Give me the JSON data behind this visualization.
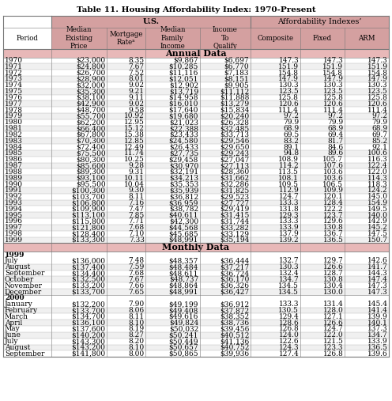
{
  "title": "Table 11. Housing Affordability Index: 1970-Present",
  "col_headers_row1": [
    "Period",
    "U.S.",
    "Affordability Indexes’"
  ],
  "col_headers_row2": [
    "Period",
    "Median\nExisting\nPrice",
    "Mortgage\nRateᵃ",
    "Median\nFamily\nIncome",
    "Income\nTo\nQualify",
    "Composite",
    "Fixed",
    "ARM"
  ],
  "annual_data": [
    [
      "1970",
      "$23,000",
      "8.35",
      "$9,867",
      "$6,697",
      "147.3",
      "147.3",
      "147.3"
    ],
    [
      "1971",
      "$24,800",
      "7.67",
      "$10,285",
      "$6,770",
      "151.9",
      "151.9",
      "151.9"
    ],
    [
      "1972",
      "$26,700",
      "7.52",
      "$11,116",
      "$7,183",
      "154.8",
      "154.8",
      "154.8"
    ],
    [
      "1973",
      "$28,900",
      "8.01",
      "$12,051",
      "$8,151",
      "147.9",
      "147.9",
      "147.9"
    ],
    [
      "1974",
      "$32,000",
      "9.02",
      "$12,902",
      "$9,905",
      "130.3",
      "130.3",
      "130.3"
    ],
    [
      "1975",
      "$35,300",
      "9.21",
      "$13,719",
      "$11,112",
      "123.5",
      "123.5",
      "123.5"
    ],
    [
      "1976",
      "$38,100",
      "9.11",
      "$14,958",
      "$11,888",
      "125.8",
      "125.8",
      "125.8"
    ],
    [
      "1977",
      "$42,900",
      "9.02",
      "$16,010",
      "$13,279",
      "120.6",
      "120.6",
      "120.6"
    ],
    [
      "1978",
      "$48,700",
      "9.58",
      "$17,640",
      "$15,834",
      "111.4",
      "111.4",
      "111.4"
    ],
    [
      "1979",
      "$55,700",
      "10.92",
      "$19,680",
      "$20,240",
      "97.2",
      "97.2",
      "97.2"
    ],
    [
      "1980",
      "$62,200",
      "12.95",
      "$21,023",
      "$26,328",
      "79.9",
      "79.9",
      "79.9"
    ],
    [
      "1981",
      "$66,400",
      "15.12",
      "$22,388",
      "$32,485",
      "68.9",
      "68.9",
      "68.9"
    ],
    [
      "1982",
      "$67,800",
      "15.38",
      "$23,433",
      "$33,713",
      "69.5",
      "69.4",
      "69.7"
    ],
    [
      "1983",
      "$70,300",
      "12.85",
      "$24,580",
      "$29,546",
      "83.2",
      "81.7",
      "85.2"
    ],
    [
      "1984",
      "$72,400",
      "12.49",
      "$26,433",
      "$29,650",
      "89.1",
      "84.6",
      "92.1"
    ],
    [
      "1985",
      "$75,500",
      "11.74",
      "$27,735",
      "$29,243",
      "94.8",
      "89.6",
      "100.6"
    ],
    [
      "1986",
      "$80,300",
      "10.25",
      "$29,458",
      "$27,047",
      "108.9",
      "105.7",
      "116.3"
    ],
    [
      "1987",
      "$85,600",
      "9.28",
      "$30,970",
      "$27,113",
      "114.2",
      "107.6",
      "122.4"
    ],
    [
      "1988",
      "$89,300",
      "9.31",
      "$32,191",
      "$28,360",
      "113.5",
      "103.6",
      "122.0"
    ],
    [
      "1989",
      "$93,100",
      "10.11",
      "$34,213",
      "$31,662",
      "108.1",
      "103.6",
      "114.3"
    ],
    [
      "1990",
      "$95,500",
      "10.04",
      "$35,353",
      "$32,286",
      "109.5",
      "106.5",
      "118.3"
    ],
    [
      "1991",
      "$100,300",
      "9.30",
      "$35,939",
      "$31,825",
      "112.9",
      "109.9",
      "124.2"
    ],
    [
      "1992",
      "$103,700",
      "8.11",
      "$36,812",
      "$29,523",
      "124.7",
      "120.1",
      "145.0"
    ],
    [
      "1993",
      "$106,800",
      "7.16",
      "$36,959",
      "$27,727",
      "133.3",
      "128.4",
      "154.9"
    ],
    [
      "1994",
      "$109,900",
      "7.47",
      "$38,782",
      "$29,419",
      "131.8",
      "122.2",
      "149.5"
    ],
    [
      "1995",
      "$113,100",
      "7.85",
      "$40,611",
      "$31,415",
      "129.3",
      "123.7",
      "140.0"
    ],
    [
      "1996",
      "$115,800",
      "7.71",
      "$42,300",
      "$31,744",
      "133.3",
      "129.6",
      "142.9"
    ],
    [
      "1997",
      "$121,800",
      "7.68",
      "$44,568",
      "$33,282",
      "133.9",
      "130.8",
      "145.2"
    ],
    [
      "1998",
      "$128,400",
      "7.10",
      "$45,685",
      "$33,129",
      "137.9",
      "136.7",
      "147.5"
    ],
    [
      "1999",
      "$133,300",
      "7.33",
      "$48,991",
      "$35,194",
      "139.2",
      "136.5",
      "150.7"
    ]
  ],
  "monthly_sections": [
    {
      "year": "1999",
      "rows": [
        [
          "July",
          "$136,000",
          "7.48",
          "$48,357",
          "$36,444",
          "132.7",
          "129.7",
          "142.6"
        ],
        [
          "August",
          "$137,400",
          "7.59",
          "$48,484",
          "$37,217",
          "130.3",
          "126.6",
          "141.7"
        ],
        [
          "September",
          "$134,400",
          "7.68",
          "$48,611",
          "$36,724",
          "132.4",
          "128.7",
          "144.3"
        ],
        [
          "October",
          "$132,500",
          "7.67",
          "$48,737",
          "$36,170",
          "134.7",
          "130.8",
          "147.4"
        ],
        [
          "November",
          "$133,200",
          "7.66",
          "$48,864",
          "$36,326",
          "134.5",
          "130.4",
          "147.3"
        ],
        [
          "December",
          "$133,700",
          "7.65",
          "$48,991",
          "$36,427",
          "134.5",
          "130.0",
          "147.3"
        ]
      ]
    },
    {
      "year": "2000",
      "rows": [
        [
          "January",
          "$132,200",
          "7.90",
          "$49,199",
          "$36,912",
          "133.3",
          "131.4",
          "145.4"
        ],
        [
          "February",
          "$133,700",
          "8.06",
          "$49,408",
          "$37,872",
          "130.5",
          "128.0",
          "141.4"
        ],
        [
          "March",
          "$134,700",
          "8.11",
          "$49,616",
          "$38,352",
          "129.4",
          "127.1",
          "139.9"
        ],
        [
          "April",
          "$136,100",
          "8.10",
          "$49,824",
          "$38,736",
          "128.6",
          "126.6",
          "140.1"
        ],
        [
          "May",
          "$137,600",
          "8.19",
          "$50,032",
          "$39,456",
          "126.8",
          "124.7",
          "137.3"
        ],
        [
          "June",
          "$140,200",
          "8.27",
          "$50,241",
          "$40,512",
          "124.0",
          "122.0",
          "134.7"
        ],
        [
          "July",
          "$143,300",
          "8.20",
          "$50,449",
          "$41,136",
          "122.6",
          "121.5",
          "133.9"
        ],
        [
          "August",
          "$143,200",
          "8.10",
          "$50,657",
          "$40,752",
          "124.3",
          "123.3",
          "136.5"
        ],
        [
          "September",
          "$141,800",
          "8.00",
          "$50,865",
          "$39,936",
          "127.4",
          "126.8",
          "139.6"
        ]
      ]
    }
  ],
  "header_bg": "#d4a0a0",
  "section_bg": "#e8b8b8",
  "white": "#ffffff",
  "font_size": 6.5,
  "title_font_size": 7.5
}
